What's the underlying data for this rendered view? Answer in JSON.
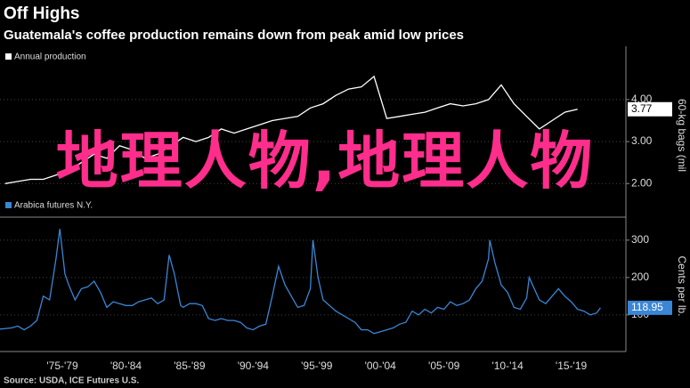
{
  "title": "Off Highs",
  "subtitle": "Guatemala's coffee production remains down from peak amid low prices",
  "source": "Source: USDA, ICE Futures U.S.",
  "overlay_text": "地理人物,地理人物",
  "chart_data": [
    {
      "type": "line",
      "y_label": "60-kg bags (mil",
      "xlim": [
        1972.6,
        2021.8
      ],
      "ylim": [
        1.2,
        5.1
      ],
      "yticks": [
        {
          "value": 2,
          "label": "2.00"
        },
        {
          "value": 3,
          "label": "3.00"
        },
        {
          "value": 4,
          "label": "4.00"
        }
      ],
      "grid": true,
      "series": [
        {
          "name": "Annual production",
          "color": "#ffffff",
          "x": [
            1973,
            1974,
            1975,
            1976,
            1977,
            1978,
            1979,
            1980,
            1981,
            1982,
            1983,
            1984,
            1985,
            1986,
            1987,
            1988,
            1989,
            1990,
            1991,
            1992,
            1993,
            1994,
            1995,
            1996,
            1997,
            1998,
            1999,
            2000,
            2001,
            2002,
            2003,
            2004,
            2005,
            2006,
            2007,
            2008,
            2009,
            2010,
            2011,
            2012,
            2013,
            2014,
            2015,
            2016,
            2017,
            2018
          ],
          "values": [
            2.0,
            2.05,
            2.1,
            2.1,
            2.2,
            2.3,
            2.5,
            2.7,
            2.6,
            2.9,
            2.8,
            2.6,
            2.7,
            2.9,
            3.1,
            3.0,
            3.1,
            3.3,
            3.2,
            3.3,
            3.4,
            3.5,
            3.55,
            3.6,
            3.8,
            3.9,
            4.1,
            4.25,
            4.3,
            4.55,
            3.55,
            3.6,
            3.65,
            3.7,
            3.8,
            3.9,
            3.85,
            3.9,
            4.0,
            4.35,
            3.9,
            3.6,
            3.3,
            3.5,
            3.7,
            3.77
          ]
        }
      ]
    },
    {
      "type": "line",
      "y_label": "Cents per lb.",
      "xlim": [
        1972.6,
        2021.8
      ],
      "ylim": [
        2,
        352
      ],
      "yticks": [
        100,
        200,
        300
      ],
      "grid": true,
      "xticks": [
        {
          "value": 1977.5,
          "label": "'75-'79"
        },
        {
          "value": 1982.5,
          "label": "'80-'84"
        },
        {
          "value": 1987.5,
          "label": "'85-'89"
        },
        {
          "value": 1992.5,
          "label": "'90-'94"
        },
        {
          "value": 1997.5,
          "label": "'95-'99"
        },
        {
          "value": 2002.5,
          "label": "'00-'04"
        },
        {
          "value": 2007.5,
          "label": "'05-'09"
        },
        {
          "value": 2012.5,
          "label": "'10-'14"
        },
        {
          "value": 2017.5,
          "label": "'15-'19"
        }
      ],
      "series": [
        {
          "name": "Arabica futures N.Y.",
          "color": "#3a86d6",
          "x": [
            1972.6,
            1973.5,
            1974,
            1974.5,
            1975,
            1975.5,
            1976,
            1976.5,
            1977,
            1977.3,
            1977.7,
            1978,
            1978.5,
            1979,
            1979.5,
            1980,
            1980.5,
            1981,
            1981.5,
            1982,
            1982.5,
            1983,
            1983.5,
            1984,
            1984.5,
            1985,
            1985.5,
            1985.9,
            1986.3,
            1986.8,
            1987,
            1987.5,
            1988,
            1988.5,
            1989,
            1989.5,
            1990,
            1990.5,
            1991,
            1991.5,
            1992,
            1992.5,
            1993,
            1993.5,
            1994,
            1994.5,
            1995,
            1995.5,
            1996,
            1996.5,
            1997,
            1997.2,
            1997.6,
            1998,
            1998.5,
            1999,
            1999.5,
            2000,
            2000.5,
            2001,
            2001.5,
            2002,
            2002.5,
            2003,
            2003.5,
            2004,
            2004.5,
            2005,
            2005.5,
            2006,
            2006.5,
            2007,
            2007.5,
            2008,
            2008.5,
            2009,
            2009.5,
            2010,
            2010.5,
            2011,
            2011.1,
            2011.5,
            2012,
            2012.5,
            2013,
            2013.5,
            2014,
            2014.2,
            2014.6,
            2015,
            2015.5,
            2016,
            2016.5,
            2017,
            2017.5,
            2018,
            2018.5,
            2019,
            2019.5,
            2019.8
          ],
          "values": [
            62,
            65,
            70,
            60,
            70,
            85,
            150,
            140,
            250,
            330,
            210,
            180,
            140,
            170,
            175,
            190,
            160,
            120,
            135,
            130,
            125,
            125,
            135,
            140,
            145,
            130,
            140,
            260,
            210,
            125,
            120,
            130,
            130,
            125,
            90,
            85,
            90,
            85,
            85,
            80,
            65,
            60,
            70,
            75,
            150,
            230,
            180,
            150,
            120,
            125,
            170,
            300,
            200,
            140,
            125,
            110,
            100,
            90,
            80,
            60,
            60,
            50,
            55,
            60,
            65,
            75,
            80,
            110,
            100,
            115,
            105,
            120,
            115,
            135,
            125,
            130,
            140,
            170,
            190,
            250,
            300,
            240,
            180,
            160,
            120,
            115,
            145,
            200,
            170,
            140,
            130,
            150,
            170,
            150,
            135,
            115,
            110,
            100,
            105,
            118.95
          ]
        }
      ]
    }
  ]
}
